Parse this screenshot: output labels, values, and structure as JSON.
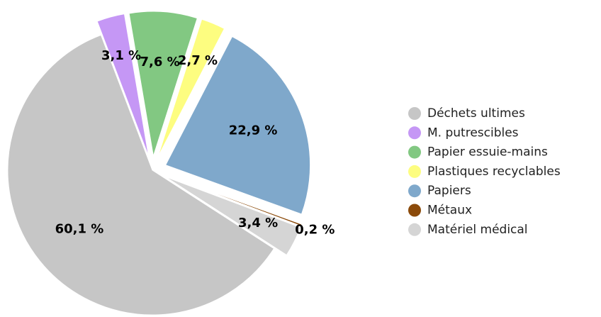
{
  "chart_data": {
    "type": "pie",
    "categories": [
      "Déchets ultimes",
      "M. putrescibles",
      "Papier essuie-mains",
      "Plastiques recyclables",
      "Papiers",
      "Métaux",
      "Matériel médical"
    ],
    "values": [
      60.1,
      3.1,
      7.6,
      2.7,
      22.9,
      0.2,
      3.4
    ],
    "value_labels": [
      "60,1 %",
      "3,1 %",
      "7,6 %",
      "2,7 %",
      "22,9 %",
      "0,2 %",
      "3,4 %"
    ],
    "colors": [
      "#c6c6c6",
      "#c597f5",
      "#82c882",
      "#fdfd80",
      "#7fa8cb",
      "#8b4a0a",
      "#d5d5d5"
    ],
    "legend": "right"
  }
}
